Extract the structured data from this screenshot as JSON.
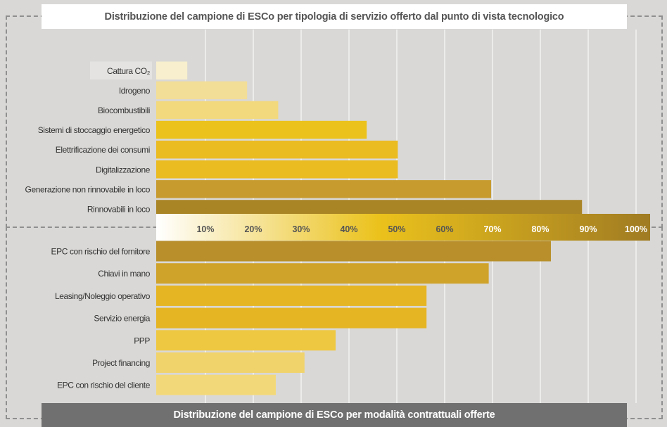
{
  "chart_data": [
    {
      "type": "bar",
      "orientation": "horizontal",
      "title": "Distribuzione del campione di ESCo per tipologia di servizio offerto dal punto di vista tecnologico",
      "categories": [
        "Cattura CO₂",
        "Idrogeno",
        "Biocombustibili",
        "Sistemi di stoccaggio energetico",
        "Elettrificazione dei consumi",
        "Digitalizzazione",
        "Generazione non rinnovabile in loco",
        "Rinnovabili in loco"
      ],
      "values": [
        6.5,
        19,
        25.5,
        44,
        50.5,
        50.5,
        70,
        89
      ],
      "unit": "%",
      "xlim": [
        0,
        104
      ],
      "grid": true,
      "colors": [
        "#f7efcd",
        "#f3de98",
        "#f2d97e",
        "#ebc21c",
        "#ebbb22",
        "#ebbb22",
        "#c79b2e",
        "#aa8526"
      ]
    },
    {
      "type": "bar",
      "orientation": "horizontal",
      "title": "Distribuzione del campione di ESCo per modalità contrattuali offerte",
      "categories": [
        "EPC con rischio del fornitore",
        "Chiavi in mano",
        "Leasing/Noleggio operativo",
        "Servizio energia",
        "PPP",
        "Project financing",
        "EPC con rischio del cliente"
      ],
      "values": [
        82.5,
        69.5,
        56.5,
        56.5,
        37.5,
        31,
        25
      ],
      "unit": "%",
      "xlim": [
        0,
        104
      ],
      "grid": true,
      "colors": [
        "#b88f2b",
        "#cfa229",
        "#e6b523",
        "#e6b523",
        "#efc842",
        "#f1d36c",
        "#f3d87a"
      ]
    }
  ],
  "axis": {
    "ticks": [
      10,
      20,
      30,
      40,
      50,
      60,
      70,
      80,
      90,
      100
    ],
    "tick_suffix": "%"
  }
}
